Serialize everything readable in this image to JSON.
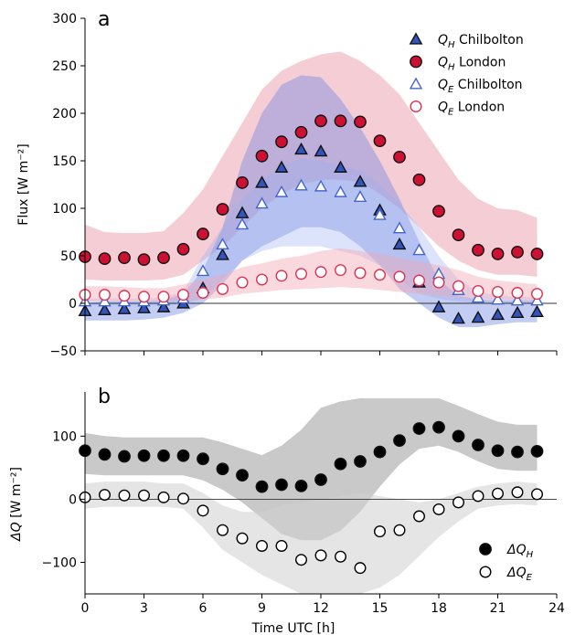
{
  "chart_data": [
    {
      "type": "scatter",
      "panel_label": "a",
      "xlabel": "",
      "ylabel": "Flux [W m⁻²]",
      "xlim": [
        0,
        24
      ],
      "ylim": [
        -50,
        300
      ],
      "xticks": [
        0,
        3,
        6,
        9,
        12,
        15,
        18,
        21,
        24
      ],
      "yticks": [
        -50,
        0,
        50,
        100,
        150,
        200,
        250,
        300
      ],
      "xtick_labels_shown": false,
      "legend_position": "top-right",
      "x": [
        0,
        1,
        2,
        3,
        4,
        5,
        6,
        7,
        8,
        9,
        10,
        11,
        12,
        13,
        14,
        15,
        16,
        17,
        18,
        19,
        20,
        21,
        22,
        23
      ],
      "series": [
        {
          "name": "Q_H Chilbolton",
          "legend_main": "Q",
          "legend_sub": "H",
          "legend_rest": " Chilbolton",
          "marker": "triangle-filled",
          "color": "#3355bb",
          "values": [
            -8,
            -7,
            -6,
            -5,
            -4,
            0,
            16,
            51,
            95,
            127,
            143,
            162,
            160,
            143,
            128,
            98,
            62,
            22,
            -4,
            -16,
            -15,
            -12,
            -10,
            -9
          ]
        },
        {
          "name": "Q_H London",
          "legend_main": "Q",
          "legend_sub": "H",
          "legend_rest": " London",
          "marker": "circle-filled",
          "color": "#cc1133",
          "values": [
            49,
            47,
            48,
            46,
            48,
            57,
            73,
            99,
            127,
            155,
            170,
            180,
            192,
            192,
            191,
            171,
            154,
            130,
            97,
            72,
            56,
            52,
            54,
            52
          ]
        },
        {
          "name": "Q_E Chilbolton",
          "legend_main": "Q",
          "legend_sub": "E",
          "legend_rest": " Chilbolton",
          "marker": "triangle-open",
          "color": "#4466cc",
          "values": [
            2,
            2,
            2,
            2,
            3,
            5,
            34,
            62,
            83,
            105,
            117,
            124,
            123,
            117,
            112,
            93,
            79,
            56,
            31,
            14,
            6,
            4,
            3,
            3
          ]
        },
        {
          "name": "Q_E London",
          "legend_main": "Q",
          "legend_sub": "E",
          "legend_rest": " London",
          "marker": "circle-open",
          "color": "#dd3355",
          "values": [
            9,
            9,
            8,
            7,
            7,
            9,
            11,
            15,
            22,
            25,
            29,
            31,
            33,
            35,
            32,
            30,
            28,
            24,
            22,
            18,
            13,
            12,
            11,
            10
          ]
        }
      ],
      "bands": [
        {
          "of": "Q_H London",
          "color": "#e88a9a",
          "opacity": 0.42,
          "lower": [
            25,
            24,
            24,
            24,
            25,
            30,
            45,
            60,
            80,
            100,
            115,
            125,
            130,
            130,
            128,
            115,
            100,
            80,
            60,
            45,
            35,
            30,
            30,
            28
          ],
          "upper": [
            83,
            75,
            74,
            74,
            76,
            95,
            120,
            155,
            190,
            225,
            245,
            255,
            262,
            265,
            255,
            240,
            220,
            190,
            160,
            130,
            110,
            100,
            98,
            90
          ]
        },
        {
          "of": "Q_H Chilbolton",
          "color": "#6f86e0",
          "opacity": 0.42,
          "lower": [
            -18,
            -18,
            -18,
            -17,
            -15,
            -10,
            0,
            20,
            45,
            60,
            70,
            80,
            80,
            75,
            60,
            40,
            15,
            0,
            -15,
            -25,
            -25,
            -22,
            -20,
            -20
          ],
          "upper": [
            0,
            2,
            2,
            2,
            3,
            10,
            35,
            80,
            150,
            200,
            230,
            240,
            238,
            215,
            185,
            150,
            110,
            65,
            25,
            8,
            4,
            3,
            3,
            3
          ]
        },
        {
          "of": "Q_E Chilbolton",
          "color": "#9aaef0",
          "opacity": 0.35,
          "lower": [
            -2,
            -2,
            -2,
            -2,
            -2,
            -1,
            5,
            25,
            45,
            55,
            60,
            60,
            60,
            55,
            50,
            40,
            25,
            10,
            5,
            2,
            0,
            0,
            0,
            0
          ],
          "upper": [
            5,
            5,
            5,
            5,
            6,
            12,
            50,
            80,
            110,
            130,
            145,
            152,
            150,
            145,
            140,
            125,
            105,
            80,
            50,
            25,
            12,
            8,
            7,
            6
          ]
        },
        {
          "of": "Q_E London",
          "color": "#f1a8b5",
          "opacity": 0.45,
          "lower": [
            2,
            2,
            2,
            2,
            2,
            3,
            4,
            6,
            10,
            12,
            14,
            15,
            16,
            17,
            16,
            14,
            12,
            10,
            8,
            6,
            4,
            4,
            3,
            3
          ],
          "upper": [
            18,
            18,
            17,
            16,
            16,
            20,
            25,
            30,
            38,
            42,
            47,
            50,
            55,
            58,
            55,
            52,
            48,
            44,
            40,
            35,
            28,
            24,
            22,
            20
          ]
        }
      ]
    },
    {
      "type": "scatter",
      "panel_label": "b",
      "xlabel": "Time UTC [h]",
      "ylabel_main": "ΔQ",
      "ylabel_rest": " [W m⁻²]",
      "xlim": [
        0,
        24
      ],
      "ylim": [
        -150,
        170
      ],
      "xticks": [
        0,
        3,
        6,
        9,
        12,
        15,
        18,
        21,
        24
      ],
      "yticks": [
        -100,
        0,
        100
      ],
      "legend_position": "bottom-right",
      "x": [
        0,
        1,
        2,
        3,
        4,
        5,
        6,
        7,
        8,
        9,
        10,
        11,
        12,
        13,
        14,
        15,
        16,
        17,
        18,
        19,
        20,
        21,
        22,
        23
      ],
      "series": [
        {
          "name": "ΔQ_H",
          "legend_main": "ΔQ",
          "legend_sub": "H",
          "marker": "circle-filled",
          "color": "#000000",
          "values": [
            77,
            71,
            68,
            69,
            69,
            69,
            64,
            48,
            38,
            20,
            23,
            21,
            31,
            56,
            60,
            75,
            93,
            112,
            114,
            100,
            86,
            77,
            75,
            76
          ]
        },
        {
          "name": "ΔQ_E",
          "legend_main": "ΔQ",
          "legend_sub": "E",
          "marker": "circle-open",
          "color": "#000000",
          "values": [
            3,
            7,
            6,
            6,
            3,
            1,
            -18,
            -49,
            -62,
            -74,
            -74,
            -96,
            -89,
            -91,
            -109,
            -51,
            -49,
            -27,
            -16,
            -5,
            5,
            9,
            11,
            8
          ]
        }
      ],
      "bands": [
        {
          "of": "ΔQ_H",
          "color": "#a8a8a8",
          "opacity": 0.62,
          "lower": [
            40,
            38,
            38,
            38,
            38,
            38,
            30,
            15,
            -5,
            -30,
            -55,
            -65,
            -65,
            -50,
            -20,
            20,
            55,
            80,
            85,
            75,
            60,
            48,
            45,
            45
          ],
          "upper": [
            105,
            100,
            98,
            98,
            98,
            98,
            98,
            90,
            80,
            70,
            85,
            110,
            145,
            155,
            160,
            160,
            160,
            160,
            160,
            148,
            135,
            123,
            118,
            118
          ]
        },
        {
          "of": "ΔQ_E",
          "color": "#cfcfcf",
          "opacity": 0.55,
          "lower": [
            -15,
            -12,
            -12,
            -12,
            -12,
            -15,
            -45,
            -80,
            -100,
            -120,
            -135,
            -150,
            -150,
            -150,
            -150,
            -140,
            -120,
            -90,
            -60,
            -35,
            -15,
            -10,
            -8,
            -10
          ],
          "upper": [
            25,
            28,
            28,
            28,
            25,
            25,
            10,
            -10,
            -20,
            -20,
            -10,
            -5,
            0,
            5,
            10,
            5,
            0,
            -5,
            0,
            10,
            20,
            25,
            28,
            25
          ]
        }
      ]
    }
  ]
}
